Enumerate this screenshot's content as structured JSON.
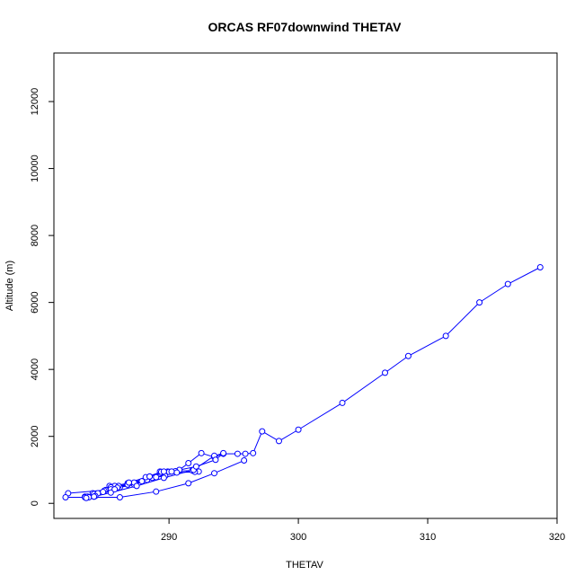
{
  "chart_data": {
    "type": "line",
    "title": "ORCAS RF07downwind THETAV",
    "xlabel": "THETAV",
    "ylabel": "Altitude (m)",
    "xlim": [
      281.1,
      320.0
    ],
    "ylim": [
      -450,
      13450
    ],
    "xticks": [
      290,
      300,
      310,
      320
    ],
    "yticks": [
      0,
      2000,
      4000,
      6000,
      8000,
      10000,
      12000
    ],
    "grid": false,
    "markers": "open-circle",
    "colors": {
      "series": "#0000ff",
      "axis": "#000000",
      "background": "#ffffff"
    },
    "series": [
      {
        "x": [
          318.7,
          316.2,
          314.0,
          311.4,
          308.5,
          306.7,
          303.4,
          300.0,
          298.5,
          297.2,
          296.5,
          295.9,
          295.3,
          294.2,
          293.5,
          292.5,
          291.5,
          290.8,
          289.9,
          289.3,
          288.3,
          287.3,
          286.2,
          285.1,
          284.1,
          283.5,
          283.6,
          284.2,
          285.4,
          286.1,
          287.4,
          288.7,
          289.7,
          290.2,
          289.4,
          288.2,
          286.8,
          285.8,
          285.5,
          285.0,
          284.2,
          283.5,
          283.7,
          284.5,
          285.5,
          286.8,
          287.9,
          289.0,
          290.5,
          291.8,
          292.3,
          292.0,
          290.6,
          290.0,
          289.6,
          288.5,
          287.3,
          286.0,
          284.9,
          284.3,
          283.8,
          283.6,
          284.2,
          285.5,
          287.5,
          289.6,
          291.9,
          293.5,
          294.2,
          293.6,
          292.1,
          290.2,
          288.5,
          286.9,
          285.8,
          282.2,
          282.0,
          286.2,
          289.0,
          291.5,
          293.5,
          295.8
        ],
        "y": [
          7050,
          6550,
          6000,
          5000,
          4400,
          3900,
          3000,
          2200,
          1860,
          2150,
          1500,
          1480,
          1480,
          1480,
          1380,
          1500,
          1200,
          1000,
          950,
          950,
          700,
          560,
          480,
          400,
          300,
          200,
          180,
          200,
          520,
          520,
          600,
          760,
          820,
          950,
          940,
          780,
          600,
          520,
          480,
          380,
          280,
          180,
          200,
          300,
          420,
          560,
          660,
          780,
          960,
          980,
          950,
          940,
          920,
          940,
          950,
          800,
          620,
          470,
          340,
          220,
          180,
          160,
          200,
          320,
          520,
          760,
          1000,
          1420,
          1500,
          1300,
          1100,
          950,
          800,
          620,
          420,
          300,
          180,
          180,
          350,
          600,
          900,
          1280
        ]
      }
    ]
  }
}
